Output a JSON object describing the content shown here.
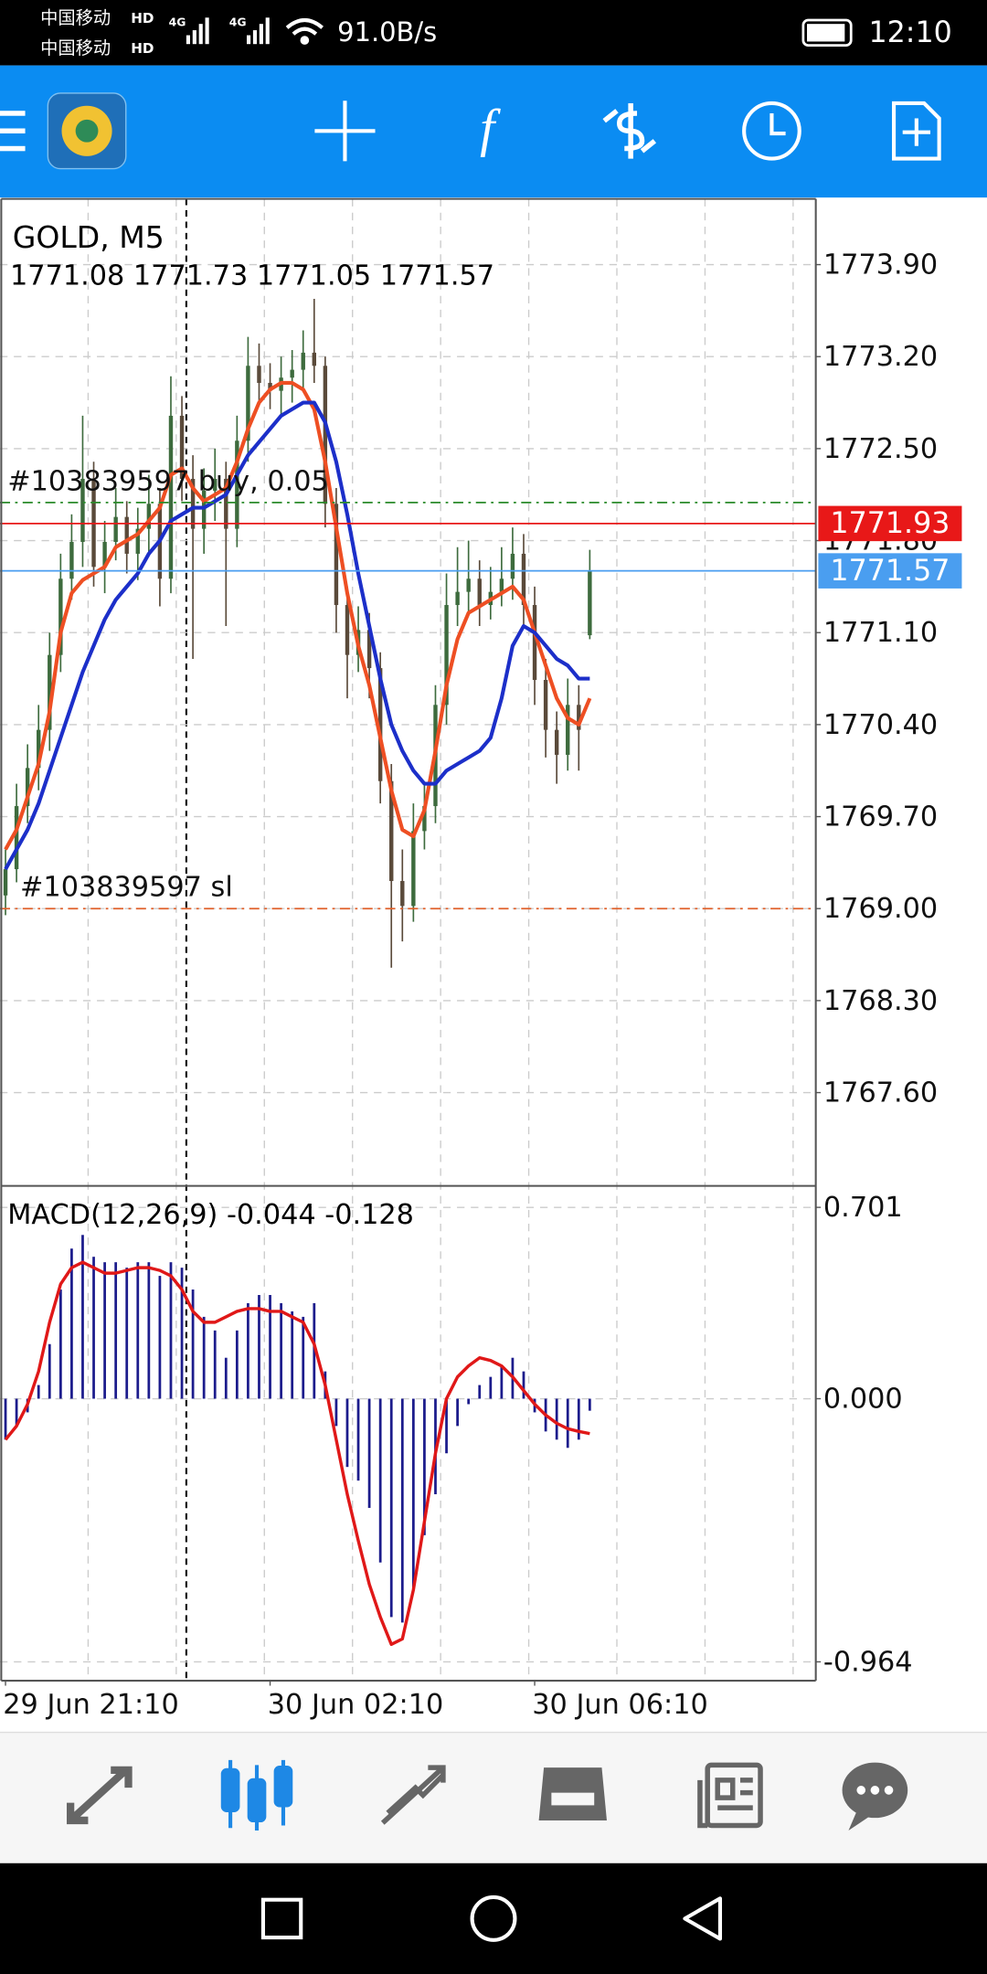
{
  "status_bar": {
    "carrier_1": "中国移动",
    "carrier_2": "中国移动",
    "badge_1": "HD",
    "badge_2": "HD",
    "network_1": "4G",
    "network_2": "4G",
    "speed": "91.0B/s",
    "time": "12:10"
  },
  "chart_data": [
    {
      "type": "candlestick",
      "title": "GOLD, M5",
      "subtitle": "1771.08 1771.73 1771.05 1771.57",
      "open": [
        1769.1,
        1769.3,
        1769.78,
        1770.07,
        1770.36,
        1770.93,
        1771.51,
        1771.79,
        1772.27,
        1771.6,
        1771.79,
        1771.98,
        1771.7,
        1771.89,
        1772.08,
        1771.51,
        1772.75,
        1772.27,
        1771.89,
        1772.18,
        1772.27,
        1771.89,
        1772.56,
        1773.13,
        1773.0,
        1772.94,
        1773.04,
        1773.1,
        1773.23,
        1773.13,
        1772.08,
        1771.31,
        1770.93,
        1771.12,
        1770.83,
        1769.97,
        1769.21,
        1769.02,
        1769.59,
        1769.78,
        1770.55,
        1771.31,
        1771.41,
        1771.51,
        1771.31,
        1771.41,
        1771.51,
        1771.7,
        1771.31,
        1770.74,
        1770.36,
        1770.17,
        1770.55,
        1771.08
      ],
      "high": [
        1769.45,
        1769.95,
        1770.25,
        1770.55,
        1771.1,
        1771.7,
        1772.0,
        1772.75,
        1772.4,
        1771.95,
        1772.2,
        1772.1,
        1772.05,
        1772.3,
        1772.2,
        1773.05,
        1772.9,
        1772.45,
        1772.35,
        1772.5,
        1772.4,
        1772.75,
        1773.35,
        1773.3,
        1773.15,
        1773.2,
        1773.25,
        1773.4,
        1773.64,
        1773.2,
        1772.2,
        1771.45,
        1771.3,
        1771.25,
        1770.95,
        1770.1,
        1769.45,
        1769.8,
        1769.95,
        1770.7,
        1771.55,
        1771.75,
        1771.8,
        1771.65,
        1771.6,
        1771.75,
        1771.9,
        1771.85,
        1771.45,
        1770.9,
        1770.5,
        1770.75,
        1770.7,
        1771.73
      ],
      "low": [
        1768.95,
        1769.2,
        1769.65,
        1769.9,
        1770.2,
        1770.8,
        1771.35,
        1771.6,
        1771.45,
        1771.4,
        1771.65,
        1771.55,
        1771.5,
        1771.7,
        1771.3,
        1771.4,
        1772.1,
        1770.9,
        1771.7,
        1771.95,
        1771.15,
        1771.75,
        1772.4,
        1772.85,
        1772.8,
        1772.75,
        1772.85,
        1772.95,
        1773.0,
        1771.9,
        1771.1,
        1770.6,
        1770.8,
        1770.6,
        1769.8,
        1768.55,
        1768.75,
        1768.9,
        1769.45,
        1769.65,
        1770.4,
        1771.15,
        1771.25,
        1771.15,
        1771.2,
        1771.3,
        1771.35,
        1771.15,
        1770.55,
        1770.15,
        1769.95,
        1770.05,
        1770.05,
        1771.05
      ],
      "close": [
        1769.3,
        1769.78,
        1770.07,
        1770.36,
        1770.93,
        1771.51,
        1771.79,
        1772.27,
        1771.6,
        1771.79,
        1771.98,
        1771.7,
        1771.89,
        1772.08,
        1771.51,
        1772.75,
        1772.27,
        1771.89,
        1772.18,
        1772.27,
        1771.89,
        1772.56,
        1773.13,
        1773.0,
        1772.94,
        1773.04,
        1773.1,
        1773.23,
        1773.13,
        1772.08,
        1771.31,
        1770.93,
        1771.12,
        1770.83,
        1769.97,
        1769.21,
        1769.02,
        1769.59,
        1769.78,
        1770.55,
        1771.31,
        1771.41,
        1771.51,
        1771.31,
        1771.41,
        1771.51,
        1771.7,
        1771.31,
        1770.74,
        1770.36,
        1770.17,
        1770.55,
        1770.36,
        1771.57
      ],
      "up_color": "#3d6b3d",
      "down_color": "#5a4a3a",
      "series": [
        {
          "color": "#ee4f23",
          "values": [
            1769.45,
            1769.6,
            1769.85,
            1770.1,
            1770.5,
            1771.1,
            1771.4,
            1771.5,
            1771.55,
            1771.6,
            1771.75,
            1771.8,
            1771.85,
            1771.95,
            1772.05,
            1772.3,
            1772.35,
            1772.2,
            1772.1,
            1772.15,
            1772.2,
            1772.4,
            1772.65,
            1772.85,
            1772.95,
            1773.0,
            1773.0,
            1772.95,
            1772.8,
            1772.4,
            1771.9,
            1771.4,
            1771.0,
            1770.7,
            1770.3,
            1769.9,
            1769.6,
            1769.55,
            1769.75,
            1770.2,
            1770.7,
            1771.05,
            1771.25,
            1771.3,
            1771.35,
            1771.4,
            1771.45,
            1771.35,
            1771.1,
            1770.85,
            1770.6,
            1770.45,
            1770.4,
            1770.6
          ]
        },
        {
          "color": "#1c2fc9",
          "values": [
            1769.3,
            1769.45,
            1769.6,
            1769.8,
            1770.05,
            1770.3,
            1770.55,
            1770.8,
            1771.0,
            1771.2,
            1771.35,
            1771.45,
            1771.55,
            1771.7,
            1771.8,
            1771.95,
            1772.0,
            1772.05,
            1772.05,
            1772.1,
            1772.15,
            1772.3,
            1772.45,
            1772.55,
            1772.65,
            1772.75,
            1772.8,
            1772.85,
            1772.85,
            1772.7,
            1772.4,
            1772.0,
            1771.55,
            1771.15,
            1770.75,
            1770.4,
            1770.2,
            1770.05,
            1769.95,
            1769.95,
            1770.05,
            1770.1,
            1770.15,
            1770.2,
            1770.3,
            1770.6,
            1771.0,
            1771.15,
            1771.1,
            1771.0,
            1770.9,
            1770.85,
            1770.75,
            1770.75
          ]
        }
      ],
      "price_lines": [
        {
          "label": "#103839597 buy, 0.05",
          "value": 1772.09,
          "color": "#2a8a2a"
        },
        {
          "label": "#103839597 sl",
          "value": 1769,
          "color": "#e0602a"
        },
        {
          "value": 1771.93,
          "color": "#e81818"
        },
        {
          "value": 1771.57,
          "color": "#4a9ef0"
        }
      ],
      "xlim": [
        -0.5,
        73.5
      ],
      "ylim": [
        1766.89,
        1774.4
      ],
      "yticks": [
        {
          "value": 1767.6,
          "label": "1767.60"
        },
        {
          "value": 1768.3,
          "label": "1768.30"
        },
        {
          "value": 1769,
          "label": "1769.00"
        },
        {
          "value": 1769.7,
          "label": "1769.70"
        },
        {
          "value": 1770.4,
          "label": "1770.40"
        },
        {
          "value": 1771.1,
          "label": "1771.10"
        },
        {
          "value": 1771.8,
          "label": "1771.80"
        },
        {
          "value": 1772.5,
          "label": "1772.50"
        },
        {
          "value": 1773.2,
          "label": "1773.20"
        },
        {
          "value": 1773.9,
          "label": "1773.90"
        }
      ],
      "grid": true
    },
    {
      "type": "macd",
      "title": "MACD(12,26,9) -0.044 -0.128",
      "color": "#1c1c8c",
      "values": [
        -0.15,
        -0.1,
        -0.05,
        0.05,
        0.2,
        0.4,
        0.55,
        0.6,
        0.52,
        0.5,
        0.5,
        0.48,
        0.5,
        0.5,
        0.45,
        0.5,
        0.48,
        0.4,
        0.3,
        0.25,
        0.15,
        0.25,
        0.35,
        0.38,
        0.38,
        0.35,
        0.32,
        0.3,
        0.35,
        0.1,
        -0.1,
        -0.25,
        -0.3,
        -0.4,
        -0.6,
        -0.8,
        -0.82,
        -0.7,
        -0.5,
        -0.35,
        -0.2,
        -0.1,
        -0.02,
        0.05,
        0.08,
        0.12,
        0.15,
        0.1,
        -0.05,
        -0.12,
        -0.15,
        -0.18,
        -0.15,
        -0.044
      ],
      "series": [
        {
          "color": "#e01818",
          "values": [
            -0.15,
            -0.1,
            -0.02,
            0.1,
            0.28,
            0.42,
            0.48,
            0.5,
            0.48,
            0.46,
            0.46,
            0.47,
            0.48,
            0.48,
            0.47,
            0.45,
            0.4,
            0.32,
            0.28,
            0.28,
            0.3,
            0.32,
            0.33,
            0.33,
            0.32,
            0.32,
            0.3,
            0.28,
            0.2,
            0.05,
            -0.15,
            -0.35,
            -0.52,
            -0.68,
            -0.8,
            -0.9,
            -0.88,
            -0.7,
            -0.45,
            -0.2,
            0.0,
            0.08,
            0.12,
            0.15,
            0.14,
            0.12,
            0.08,
            0.03,
            -0.02,
            -0.06,
            -0.09,
            -0.11,
            -0.12,
            -0.128
          ]
        }
      ],
      "xlim": [
        -0.5,
        73.5
      ],
      "ylim": [
        -1.033,
        0.775
      ],
      "yticks": [
        -0.964,
        {
          "value": 0,
          "label": "0.000"
        },
        0.701
      ],
      "xticks": [
        {
          "value": 0,
          "label": "29 Jun 21:10"
        },
        {
          "value": 24,
          "label": "30 Jun 02:10"
        },
        {
          "value": 48,
          "label": "30 Jun 06:10"
        }
      ],
      "grid": true
    }
  ]
}
